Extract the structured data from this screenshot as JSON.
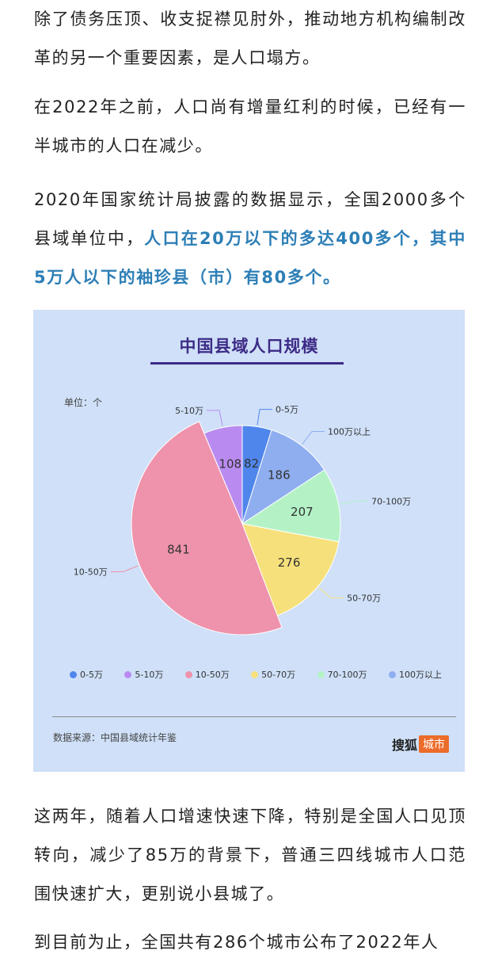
{
  "article": {
    "p1": "除了债务压顶、收支捉襟见肘外，推动地方机构编制改革的另一个重要因素，是人口塌方。",
    "p2": "在2022年之前，人口尚有增量红利的时候，已经有一半城市的人口在减少。",
    "p3_plain": "2020年国家统计局披露的数据显示，全国2000多个县域单位中，",
    "p3_highlight": "人口在20万以下的多达400多个，其中5万人以下的袖珍县（市）有80多个。",
    "p4": "这两年，随着人口增速快速下降，特别是全国人口见顶转向，减少了85万的背景下，普通三四线城市人口范围快速扩大，更别说小县城了。",
    "p5": "到目前为止，全国共有286个城市公布了2022年人"
  },
  "chart_card": {
    "unit_label": "单位：个",
    "source_label": "数据来源：中国县域统计年鉴",
    "brand_text": "搜狐",
    "brand_badge": "城市",
    "colors": {
      "background": "#cfe0f8",
      "title": "#3d2b86",
      "highlight_text": "#2d7fb6",
      "brand": "#ec6c2a"
    }
  },
  "chart_data": {
    "type": "pie",
    "title": "中国县域人口规模",
    "categories": [
      "0-5万",
      "5-10万",
      "10-50万",
      "50-70万",
      "70-100万",
      "100万以上"
    ],
    "values": [
      82,
      108,
      841,
      276,
      207,
      186
    ],
    "colors": [
      "#4f86ec",
      "#b98bf0",
      "#ee93ab",
      "#f6e07b",
      "#b4f2c6",
      "#8faef0"
    ],
    "legend_position": "bottom"
  }
}
